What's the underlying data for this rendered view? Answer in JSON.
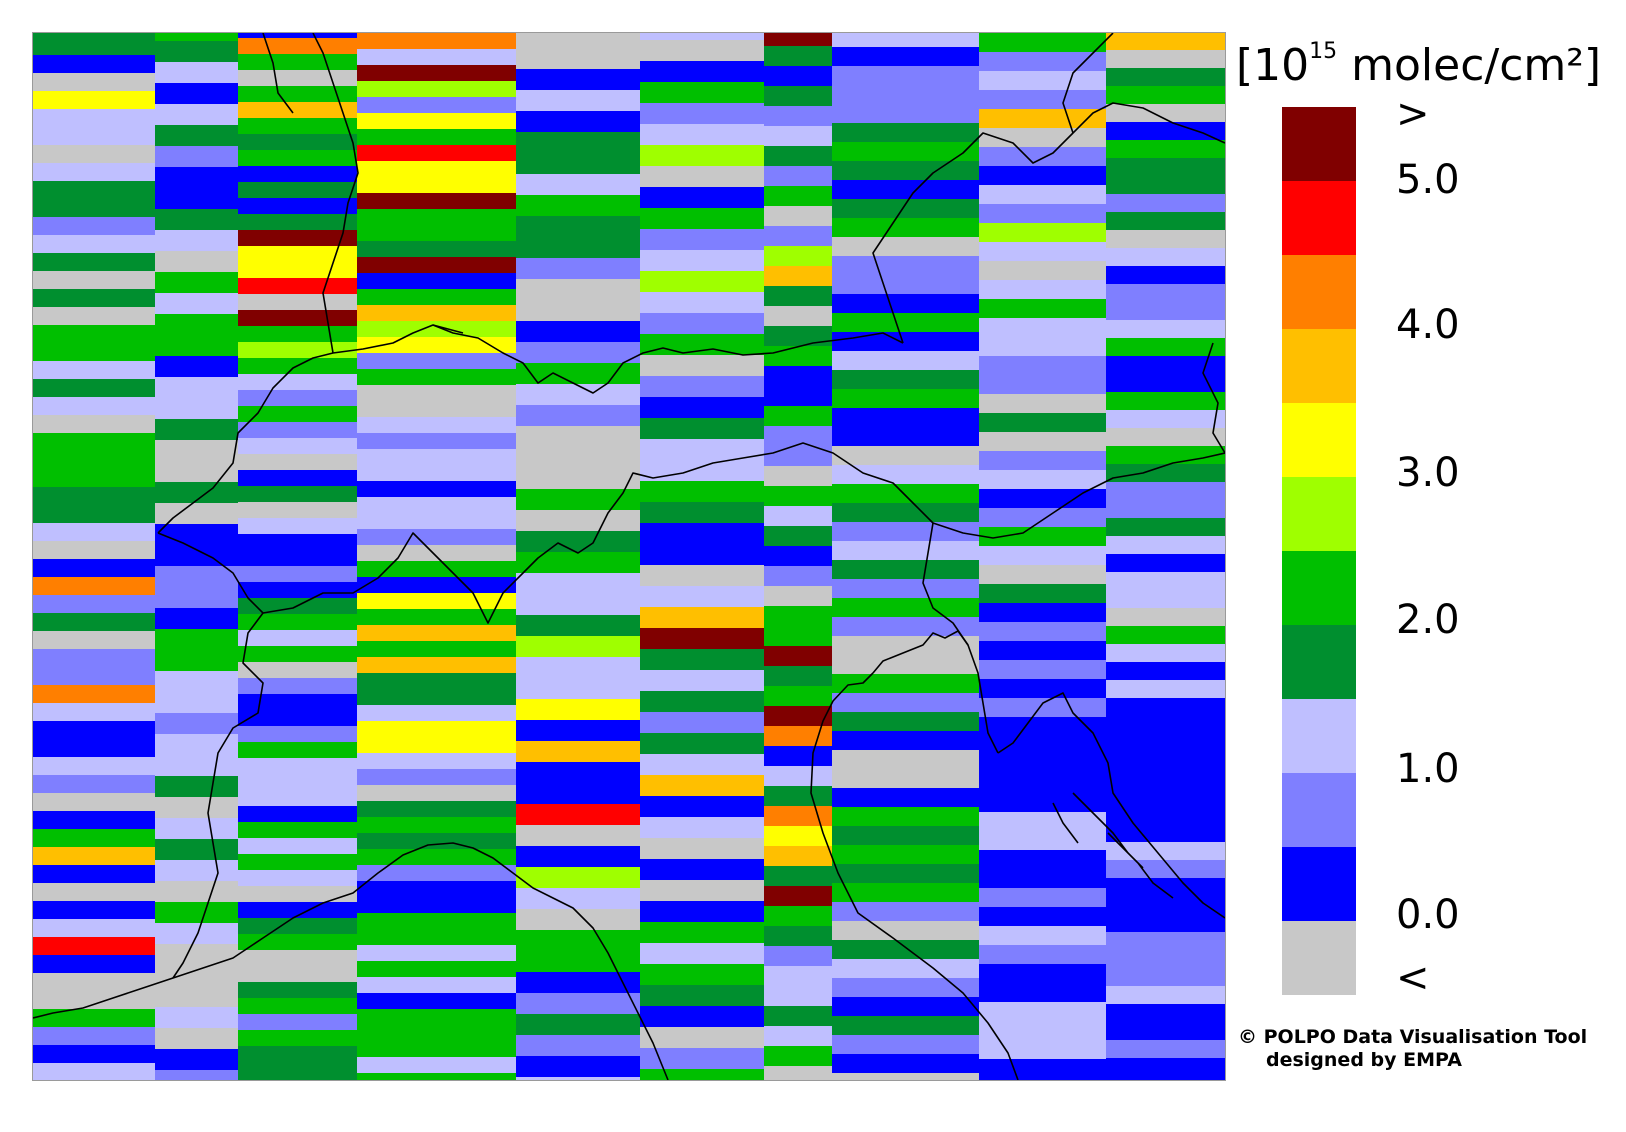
{
  "unit_label": {
    "prefix": "[10",
    "exponent": "15",
    "suffix": " molec/cm²]"
  },
  "colorbar": {
    "colors": [
      "#800000",
      "#ff0000",
      "#ff7f00",
      "#ffbf00",
      "#ffff00",
      "#9fff00",
      "#00bf00",
      "#008f2f",
      "#bfbfff",
      "#7f7fff",
      "#0000ff",
      "#c8c8c8"
    ],
    "labels": [
      ">",
      "5.0",
      "4.0",
      "3.0",
      "2.0",
      "1.0",
      "0.0",
      "<"
    ]
  },
  "credit": {
    "line1": "© POLPO Data Visualisation Tool",
    "line2": "designed by EMPA"
  },
  "map_colors": {
    "coast": "#000000",
    "background": "#c8c8c8"
  }
}
